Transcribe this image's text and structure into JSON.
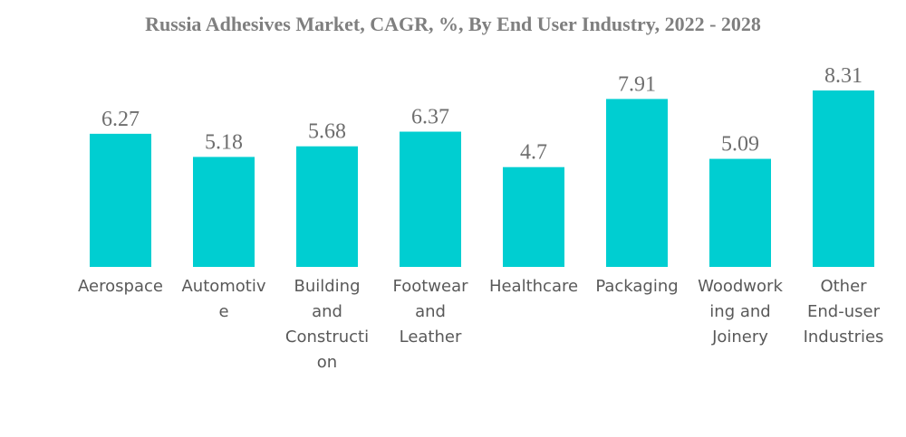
{
  "chart_data": {
    "type": "bar",
    "title": "Russia Adhesives Market, CAGR, %, By End User Industry, 2022 - 2028",
    "xlabel": "",
    "ylabel": "",
    "ylim": [
      0,
      8.31
    ],
    "grid": false,
    "legend": "none",
    "bar_color": "#00CED1",
    "categories": [
      "Aerospace",
      "Automotive",
      "Building and Construction",
      "Footwear and Leather",
      "Healthcare",
      "Packaging",
      "Woodworking and Joinery",
      "Other End-user Industries"
    ],
    "category_label_lines": [
      [
        "Aerospace"
      ],
      [
        "Automotiv",
        "e"
      ],
      [
        "Building",
        "and",
        "Constructi",
        "on"
      ],
      [
        "Footwear",
        "and",
        "Leather"
      ],
      [
        "Healthcare"
      ],
      [
        "Packaging"
      ],
      [
        "Woodwork",
        "ing and",
        "Joinery"
      ],
      [
        "Other",
        "End-user",
        "Industries"
      ]
    ],
    "values": [
      6.27,
      5.18,
      5.68,
      6.37,
      4.7,
      7.91,
      5.09,
      8.31
    ],
    "data_labels": [
      "6.27",
      "5.18",
      "5.68",
      "6.37",
      "4.7",
      "7.91",
      "5.09",
      "8.31"
    ]
  }
}
